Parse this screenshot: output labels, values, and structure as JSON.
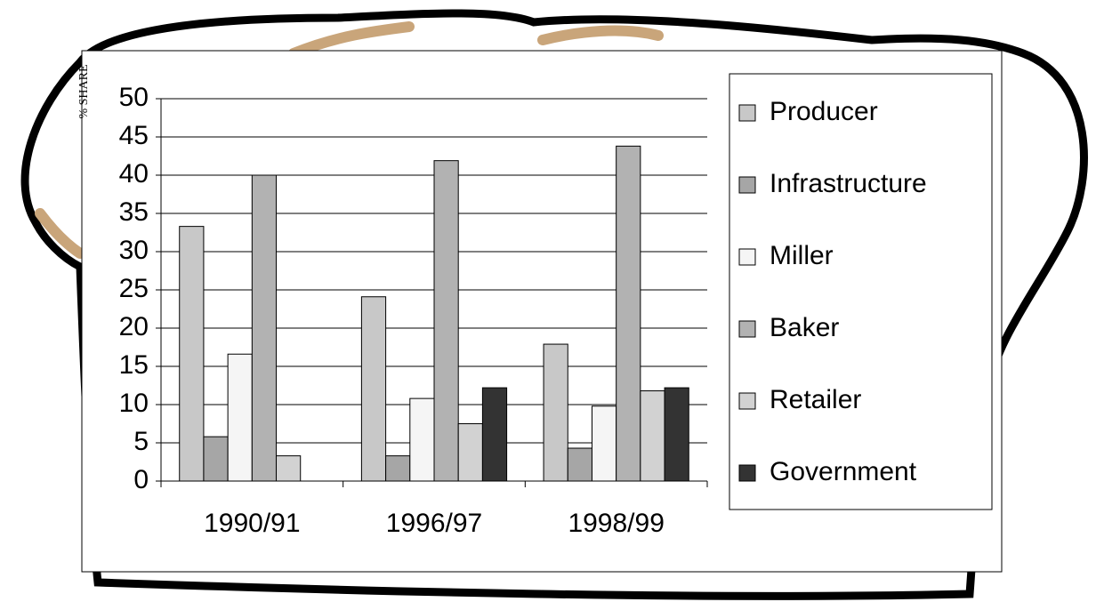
{
  "chart_data": {
    "type": "bar",
    "y_label": "% SHARE",
    "categories": [
      "1990/91",
      "1996/97",
      "1998/99"
    ],
    "series": [
      {
        "name": "Producer",
        "color": "#c8c8c8",
        "values": [
          33.3,
          24.1,
          17.9
        ]
      },
      {
        "name": "Infrastructure",
        "color": "#a6a6a6",
        "values": [
          5.8,
          3.3,
          4.3
        ]
      },
      {
        "name": "Miller",
        "color": "#f5f5f5",
        "values": [
          16.6,
          10.8,
          9.8
        ]
      },
      {
        "name": "Baker",
        "color": "#b2b2b2",
        "values": [
          40,
          41.9,
          43.8
        ]
      },
      {
        "name": "Retailer",
        "color": "#d2d2d2",
        "values": [
          3.3,
          7.5,
          11.8
        ]
      },
      {
        "name": "Government",
        "color": "#333333",
        "values": [
          null,
          12.2,
          12.2
        ]
      }
    ],
    "ylim": [
      0,
      50
    ],
    "yticks": [
      0,
      5,
      10,
      15,
      20,
      25,
      30,
      35,
      40,
      45,
      50
    ],
    "grid": true,
    "legend": "right"
  }
}
